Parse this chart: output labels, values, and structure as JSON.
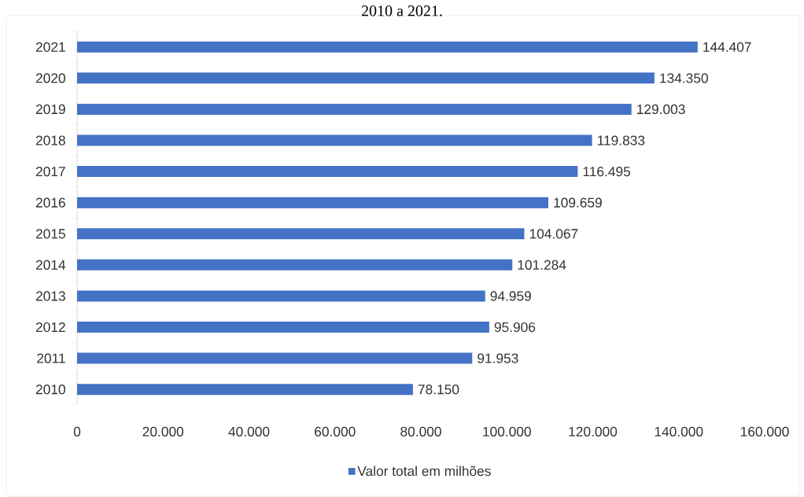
{
  "chart_data": {
    "type": "bar",
    "orientation": "horizontal",
    "title": "2010 a 2021.",
    "categories": [
      "2021",
      "2020",
      "2019",
      "2018",
      "2017",
      "2016",
      "2015",
      "2014",
      "2013",
      "2012",
      "2011",
      "2010"
    ],
    "series": [
      {
        "name": "Valor total em milhões",
        "color": "#4472c4",
        "values": [
          144407,
          134350,
          129003,
          119833,
          116495,
          109659,
          104067,
          101284,
          94959,
          95906,
          91953,
          78150
        ],
        "value_labels": [
          "144.407",
          "134.350",
          "129.003",
          "119.833",
          "116.495",
          "109.659",
          "104.067",
          "101.284",
          "94.959",
          "95.906",
          "91.953",
          "78.150"
        ]
      }
    ],
    "xlim": [
      0,
      160000
    ],
    "xticks": [
      0,
      {
        "value": 20000,
        "label": "20.000"
      },
      {
        "value": 40000,
        "label": "40.000"
      },
      {
        "value": 60000,
        "label": "60.000"
      },
      {
        "value": 80000,
        "label": "80.000"
      },
      {
        "value": 100000,
        "label": "100.000"
      },
      {
        "value": 120000,
        "label": "120.000"
      },
      {
        "value": 140000,
        "label": "140.000"
      },
      {
        "value": 160000,
        "label": "160.000"
      }
    ],
    "legend": "bottom",
    "grid": false
  }
}
